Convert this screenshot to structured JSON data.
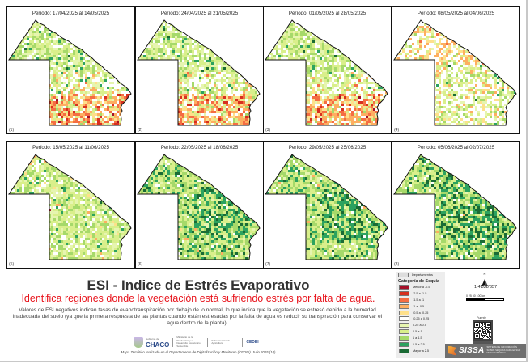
{
  "panels": [
    {
      "num": "(1)",
      "title": "Período: 17/04/2025 al 14/05/2025",
      "profile": "dry_south"
    },
    {
      "num": "(2)",
      "title": "Período: 24/04/2025 al 21/05/2025",
      "profile": "dry_south"
    },
    {
      "num": "(3)",
      "title": "Período: 01/05/2025 al 28/05/2025",
      "profile": "dry_south_strong"
    },
    {
      "num": "(4)",
      "title": "Período: 08/05/2025 al 04/06/2025",
      "profile": "mixed_dry_north"
    },
    {
      "num": "(5)",
      "title": "Período: 15/05/2025 al 11/06/2025",
      "profile": "light_wet"
    },
    {
      "num": "(6)",
      "title": "Período: 22/05/2025 al 18/06/2025",
      "profile": "wet"
    },
    {
      "num": "(7)",
      "title": "Período: 29/05/2025 al 25/06/2025",
      "profile": "wet"
    },
    {
      "num": "(8)",
      "title": "Período: 05/06/2025 al 02/07/2025",
      "profile": "wet_strong"
    }
  ],
  "title": "ESI - Indice de Estrés Evaporativo",
  "subtitle": "Identifica regiones donde la vegetación está sufriendo estrés por falta de agua.",
  "description": "Valores de ESI negativos indican tasas de evapotranspiración por debajo de lo normal, lo que indica que la vegetación se estresó debido a la humedad inadecuada del suelo (ya que la primera respuesta de las plantas cuando están estresadas por la falta de agua es reducir su transpiración para conservar el agua dentro de la planta).",
  "logos": {
    "chaco_small": "Gobierno del",
    "chaco": "CHACO",
    "ministerio": "Ministerio de la Producción y el Desarrollo Económico Sostenible",
    "subsecretaria": "Subsecretaría de Agricultura",
    "cedei": "CEDEI"
  },
  "credit": "Mapa Temático realizado en el Departamento de Digitalización y Monitoreo (CEDEI). Julio 2025 (10)",
  "legend": {
    "departamentos": "Departamentos",
    "heading": "Categoría de Sequía",
    "items": [
      {
        "label": "Menor a -2.5",
        "color": "#a50f28"
      },
      {
        "label": "-2.5 a -1.5",
        "color": "#d7301f"
      },
      {
        "label": "-1.5 a -1",
        "color": "#f46d43"
      },
      {
        "label": "-1 a -0.5",
        "color": "#fdae61"
      },
      {
        "label": "-0.5 a -0.25",
        "color": "#fee08b"
      },
      {
        "label": "-0.25 a 0.25",
        "color": "#ffffff"
      },
      {
        "label": "0.25 a 0.5",
        "color": "#e6f5b0"
      },
      {
        "label": "0.5 a 1",
        "color": "#d9ef8b"
      },
      {
        "label": "1 a 1.5",
        "color": "#a6d96a"
      },
      {
        "label": "1.5 a 2.5",
        "color": "#2ca25f"
      },
      {
        "label": "Mayor a 2.5",
        "color": "#1a6b35"
      }
    ]
  },
  "map_extras": {
    "north": "N",
    "scale": "1:4'838'357",
    "scale_ticks": "0   25  50        100 km",
    "fuente": "Fuente"
  },
  "sissa": {
    "name": "SISSA",
    "tagline": "SISTEMA DE INFORMACIÓN SOBRE SEQUÍAS PARA EL SUR DE SUDAMÉRICA"
  }
}
